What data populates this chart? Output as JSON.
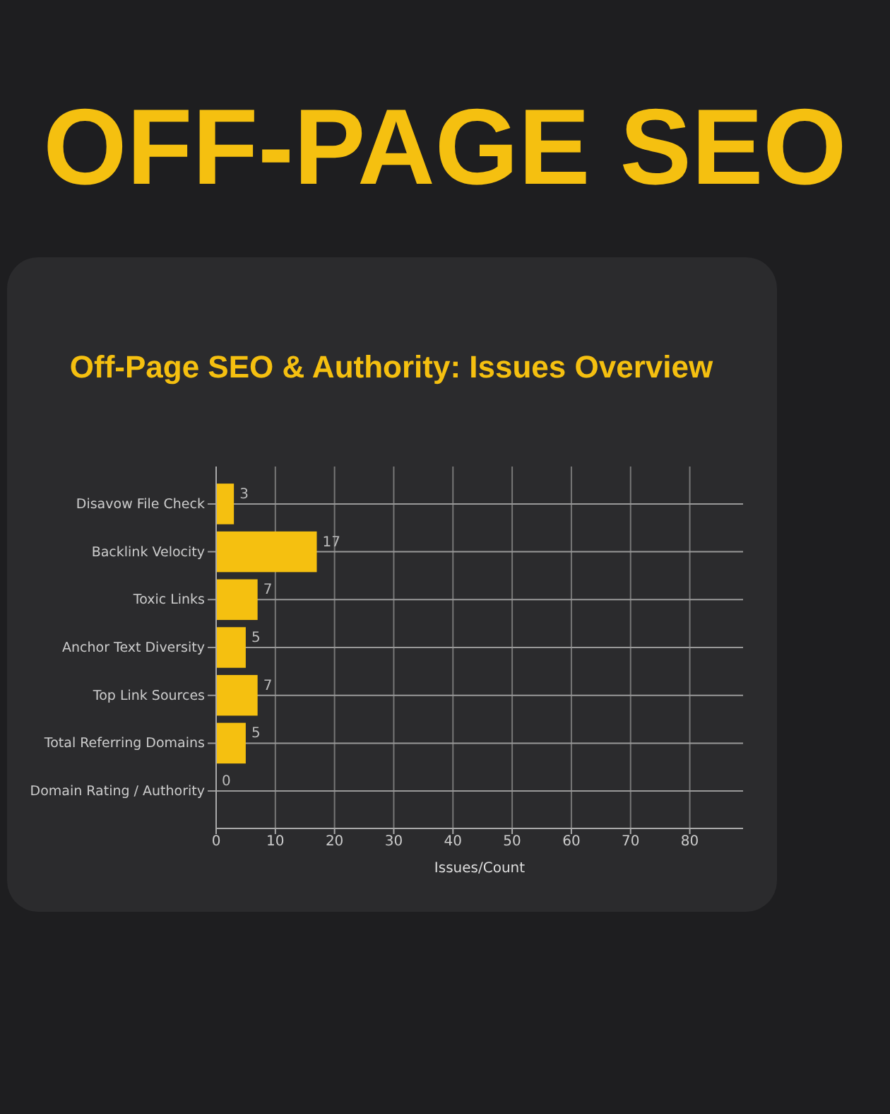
{
  "chart_data": {
    "type": "bar",
    "title": "OFF-PAGE SEO",
    "subtitle": "Off-Page SEO & Authority: Issues Overview",
    "orientation": "horizontal",
    "categories": [
      "Disavow File Check",
      "Backlink Velocity",
      "Toxic Links",
      "Anchor Text Diversity",
      "Top Link Sources",
      "Total Referring Domains",
      "Domain Rating / Authority"
    ],
    "values": [
      3,
      17,
      7,
      5,
      7,
      5,
      0
    ],
    "color": "#f5c010",
    "xlabel": "Issues/Count",
    "xlim": [
      0,
      89
    ],
    "xticks": [
      0,
      10,
      20,
      30,
      40,
      50,
      60,
      70,
      80
    ],
    "grid": true,
    "data_labels": true
  }
}
